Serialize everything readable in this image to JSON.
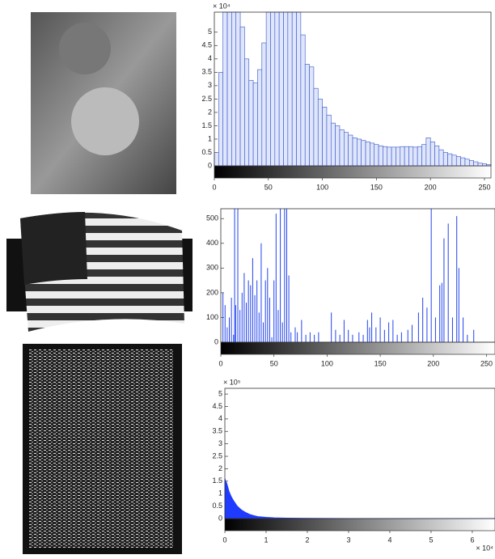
{
  "chart_data": [
    {
      "type": "histogram",
      "color": "#3355cc",
      "y_multiplier": "× 10⁴",
      "bins": [
        0,
        4,
        8,
        12,
        16,
        20,
        24,
        28,
        32,
        36,
        40,
        44,
        48,
        52,
        56,
        60,
        64,
        68,
        72,
        76,
        80,
        84,
        88,
        92,
        96,
        100,
        104,
        108,
        112,
        116,
        120,
        124,
        128,
        132,
        136,
        140,
        144,
        148,
        152,
        156,
        160,
        164,
        168,
        172,
        176,
        180,
        184,
        188,
        192,
        196,
        200,
        204,
        208,
        212,
        216,
        220,
        224,
        228,
        232,
        236,
        240,
        244,
        248,
        252,
        256
      ],
      "counts": [
        0.5,
        3.5,
        5.75,
        5.75,
        5.75,
        5.75,
        5.2,
        4.0,
        3.2,
        3.1,
        3.6,
        4.6,
        5.75,
        5.75,
        5.75,
        5.75,
        5.75,
        5.75,
        5.75,
        5.75,
        4.9,
        3.8,
        3.7,
        2.9,
        2.5,
        2.2,
        1.9,
        1.6,
        1.5,
        1.35,
        1.25,
        1.15,
        1.05,
        1.0,
        0.95,
        0.9,
        0.85,
        0.8,
        0.75,
        0.72,
        0.7,
        0.7,
        0.7,
        0.72,
        0.72,
        0.72,
        0.7,
        0.72,
        0.8,
        1.05,
        0.9,
        0.75,
        0.6,
        0.5,
        0.45,
        0.4,
        0.35,
        0.3,
        0.25,
        0.2,
        0.15,
        0.1,
        0.08,
        0.05
      ],
      "xlim": [
        0,
        256
      ],
      "ylim": [
        0,
        5.75
      ],
      "xticks": [
        0,
        50,
        100,
        150,
        200,
        250
      ],
      "yticks": [
        0,
        0.5,
        1,
        1.5,
        2,
        2.5,
        3,
        3.5,
        4,
        4.5,
        5
      ]
    },
    {
      "type": "stem",
      "color": "#2244ee",
      "x": [
        2,
        4,
        6,
        8,
        10,
        12,
        13,
        14,
        16,
        18,
        20,
        22,
        24,
        26,
        28,
        30,
        32,
        34,
        36,
        38,
        40,
        42,
        44,
        46,
        48,
        50,
        52,
        54,
        56,
        58,
        60,
        62,
        64,
        66,
        70,
        72,
        76,
        80,
        84,
        88,
        92,
        104,
        108,
        112,
        116,
        120,
        124,
        130,
        134,
        138,
        140,
        142,
        146,
        150,
        154,
        158,
        162,
        166,
        170,
        176,
        180,
        186,
        190,
        194,
        198,
        202,
        206,
        208,
        210,
        214,
        218,
        222,
        224,
        228,
        232,
        238
      ],
      "values": [
        200,
        150,
        60,
        100,
        180,
        30,
        540,
        150,
        540,
        130,
        200,
        280,
        160,
        250,
        230,
        340,
        190,
        250,
        120,
        400,
        80,
        250,
        300,
        180,
        20,
        250,
        520,
        130,
        540,
        80,
        540,
        540,
        270,
        40,
        60,
        40,
        90,
        30,
        40,
        30,
        40,
        120,
        50,
        30,
        90,
        50,
        30,
        40,
        30,
        90,
        60,
        120,
        60,
        100,
        50,
        80,
        90,
        30,
        40,
        50,
        70,
        120,
        180,
        140,
        540,
        100,
        230,
        240,
        420,
        480,
        100,
        510,
        300,
        100,
        30,
        50
      ],
      "xlim": [
        0,
        258
      ],
      "ylim": [
        0,
        540
      ],
      "xticks": [
        0,
        50,
        100,
        150,
        200,
        250
      ],
      "yticks": [
        0,
        100,
        200,
        300,
        400,
        500
      ]
    },
    {
      "type": "area",
      "color": "#1f3bff",
      "y_multiplier": "× 10⁵",
      "x_multiplier": "× 10⁴",
      "x": [
        0,
        0.05,
        0.1,
        0.15,
        0.2,
        0.3,
        0.4,
        0.5,
        0.6,
        0.7,
        0.8,
        1.0,
        1.2,
        1.5,
        2,
        3,
        4,
        5,
        6,
        6.55
      ],
      "values": [
        1.6,
        1.4,
        1.1,
        0.9,
        0.75,
        0.5,
        0.35,
        0.25,
        0.17,
        0.12,
        0.08,
        0.05,
        0.03,
        0.02,
        0.01,
        0.005,
        0.005,
        0.005,
        0.005,
        0
      ],
      "xlim": [
        0,
        6.55
      ],
      "ylim": [
        0,
        5.23
      ],
      "xticks": [
        0,
        1,
        2,
        3,
        4,
        5,
        6
      ],
      "yticks": [
        0,
        0.5,
        1,
        1.5,
        2,
        2.5,
        3,
        3.5,
        4,
        4.5,
        5
      ]
    }
  ]
}
